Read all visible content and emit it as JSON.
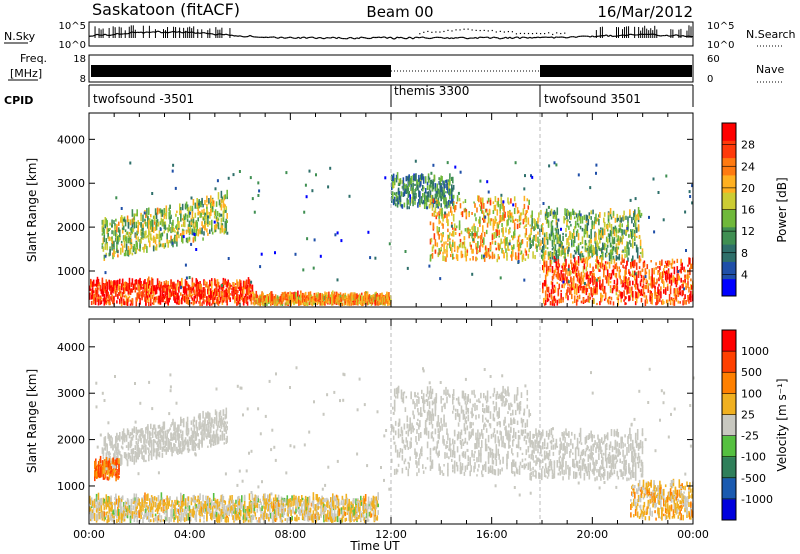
{
  "header": {
    "station": "Saskatoon (fitACF)",
    "beam": "Beam 00",
    "date": "16/Mar/2012"
  },
  "noise_panel": {
    "left_label": "N.Sky",
    "left_ticks": [
      "10^5",
      "10^0"
    ],
    "right_ticks": [
      "10^5",
      "10^0"
    ],
    "right_label": "N.Search"
  },
  "freq_panel": {
    "left_label_1": "Freq.",
    "left_label_2": "[MHz]",
    "left_ticks": [
      "18",
      "8"
    ],
    "right_ticks": [
      "60",
      "0"
    ],
    "right_label": "Nave"
  },
  "cpid_panel": {
    "label": "CPID",
    "segments": [
      {
        "name": "twofsound -3501",
        "start_hour": 0,
        "end_hour": 12
      },
      {
        "name": "themis 3300",
        "start_hour": 12,
        "end_hour": 18
      },
      {
        "name": "twofsound 3501",
        "start_hour": 18,
        "end_hour": 24
      }
    ]
  },
  "axes": {
    "ylabel": "Slant Range [km]",
    "xlabel": "Time UT",
    "x_ticks": [
      "00:00",
      "04:00",
      "08:00",
      "12:00",
      "16:00",
      "20:00",
      "00:00"
    ],
    "y_ticks": [
      "1000",
      "2000",
      "3000",
      "4000"
    ]
  },
  "colorbars": {
    "power": {
      "label": "Power [dB]",
      "ticks": [
        "28",
        "24",
        "20",
        "16",
        "12",
        "8",
        "4"
      ],
      "colors": [
        "#0000ff",
        "#1f4fa8",
        "#2e6f6a",
        "#3f8f52",
        "#6fb83a",
        "#cccc33",
        "#ffb020",
        "#ff7a10",
        "#ff3a0a",
        "#ff0000"
      ]
    },
    "velocity": {
      "label": "Velocity [m s⁻¹]",
      "ticks": [
        "1000",
        "500",
        "100",
        "25",
        "-25",
        "-100",
        "-500",
        "-1000"
      ],
      "colors": [
        "#0000dd",
        "#1a5ab0",
        "#2f7f5a",
        "#55c040",
        "#c8c8c0",
        "#f0b020",
        "#ff8000",
        "#ff4000",
        "#ff0000"
      ]
    }
  },
  "chart_data": [
    {
      "type": "heatmap",
      "title": "Power",
      "xlabel": "Time UT",
      "ylabel": "Slant Range [km]",
      "xlim": [
        0,
        24
      ],
      "ylim": [
        180,
        4600
      ],
      "colorbar_label": "Power [dB]",
      "colorbar_range": [
        0,
        32
      ],
      "echo_bands": [
        {
          "t0": 0.0,
          "t1": 6.5,
          "r0": 200,
          "r1": 700,
          "level": 28
        },
        {
          "t0": 6.5,
          "t1": 12.0,
          "r0": 200,
          "r1": 400,
          "level": 22
        },
        {
          "t0": 0.5,
          "t1": 5.5,
          "r0": 1200,
          "r1": 2100,
          "level": 16,
          "rising_to": 2700
        },
        {
          "t0": 12.0,
          "t1": 14.5,
          "r0": 2400,
          "r1": 3100,
          "level": 10
        },
        {
          "t0": 13.5,
          "t1": 17.5,
          "r0": 1200,
          "r1": 2600,
          "level": 20
        },
        {
          "t0": 17.5,
          "t1": 22.0,
          "r0": 1200,
          "r1": 2300,
          "level": 14
        },
        {
          "t0": 18.0,
          "t1": 24.0,
          "r0": 200,
          "r1": 1200,
          "level": 26
        }
      ]
    },
    {
      "type": "heatmap",
      "title": "Velocity",
      "xlabel": "Time UT",
      "ylabel": "Slant Range [km]",
      "xlim": [
        0,
        24
      ],
      "ylim": [
        180,
        4600
      ],
      "colorbar_label": "Velocity [m s⁻¹]",
      "colorbar_range": [
        -1000,
        1000
      ],
      "echo_bands": [
        {
          "t0": 0.0,
          "t1": 11.5,
          "r0": 200,
          "r1": 700,
          "level": -100
        },
        {
          "t0": 0.5,
          "t1": 5.5,
          "r0": 1300,
          "r1": 2000,
          "level": 0,
          "rising_to": 2600
        },
        {
          "t0": 0.2,
          "t1": 1.2,
          "r0": 1100,
          "r1": 1500,
          "level": -500
        },
        {
          "t0": 12.0,
          "t1": 17.5,
          "r0": 1200,
          "r1": 3000,
          "level": 0
        },
        {
          "t0": 17.5,
          "t1": 22.0,
          "r0": 1100,
          "r1": 2100,
          "level": 0
        },
        {
          "t0": 21.5,
          "t1": 24.0,
          "r0": 250,
          "r1": 1000,
          "level": -200
        }
      ]
    }
  ]
}
